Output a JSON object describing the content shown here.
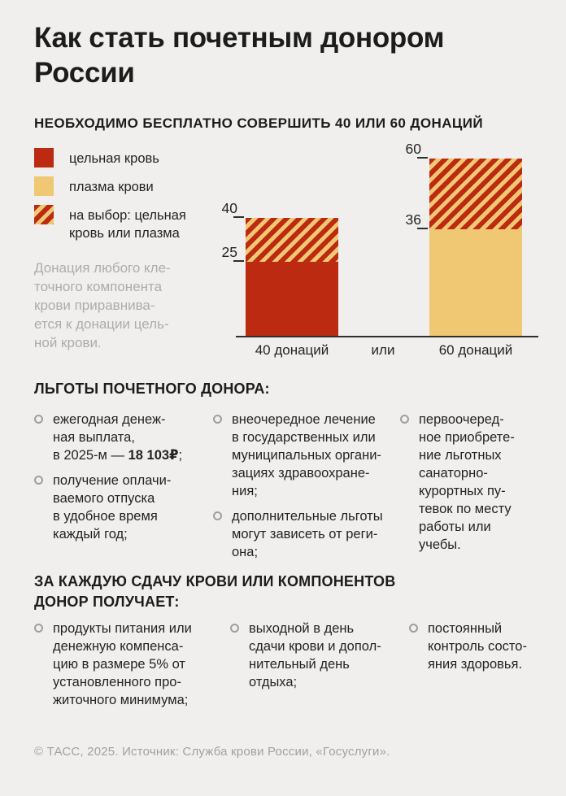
{
  "page_title": "Как стать почетным донором\nРоссии",
  "colors": {
    "red": "#bb2a11",
    "tan": "#f0c873",
    "background": "#f0efed",
    "text_dark": "#1c1c1c",
    "note_gray": "#aeaca9",
    "bullet_ring": "#9e9e9e",
    "footer_gray": "#a3a19e",
    "axis": "#2e2e2e"
  },
  "donations_section": {
    "legend": [
      {
        "swatch": "whole-blood",
        "label": "цельная кровь"
      },
      {
        "swatch": "plasma",
        "label": "плазма крови"
      },
      {
        "swatch": "either",
        "label": "на выбор: цельная\nкровь или плазма"
      }
    ],
    "note": "Донация любого кле-\nточного компонента\nкрови приравнива-\nется к донации цель-\nной крови."
  },
  "chart_data": {
    "type": "stacked-bar",
    "title": "НЕОБХОДИМО БЕСПЛАТНО СОВЕРШИТЬ 40 ИЛИ 60 ДОНАЦИЙ",
    "categories": [
      "40 донаций",
      "60 донаций"
    ],
    "separator_label": "или",
    "series": [
      {
        "name": "цельная кровь",
        "pattern": "solid-red",
        "values": [
          25,
          0
        ]
      },
      {
        "name": "плазма крови",
        "pattern": "solid-tan",
        "values": [
          0,
          36
        ]
      },
      {
        "name": "на выбор: цельная кровь или плазма",
        "pattern": "striped",
        "values": [
          15,
          24
        ]
      }
    ],
    "totals": [
      40,
      60
    ],
    "tick_labels": [
      [
        25,
        40
      ],
      [
        36,
        60
      ]
    ],
    "ylim": [
      0,
      60
    ],
    "grid": false,
    "legend_position": "left"
  },
  "benefits_section": {
    "heading": "ЛЬГОТЫ ПОЧЕТНОГО ДОНОРА:",
    "columns": [
      {
        "items": [
          {
            "text_before": "ежегодная денеж-\nная выплата,\nв 2025-м — ",
            "text_bold": "18 103₽",
            "text_after": ";"
          },
          {
            "text": "получение оплачи-\nваемого отпуска\nв удобное время\nкаждый год;"
          }
        ]
      },
      {
        "items": [
          {
            "text": "внеочередное лечение\nв государственных или\nмуниципальных органи-\nзациях здравоохране-\nния;"
          },
          {
            "text": "дополнительные льготы\nмогут зависеть от реги-\nона;"
          }
        ]
      },
      {
        "items": [
          {
            "text": "первоочеред-\nное приобрете-\nние льготных\nсанаторно-\nкурортных пу-\nтевок по месту\nработы или\nучебы."
          }
        ]
      }
    ]
  },
  "per_donation_section": {
    "heading": "ЗА КАЖДУЮ СДАЧУ КРОВИ ИЛИ КОМПОНЕНТОВ\nДОНОР ПОЛУЧАЕТ:",
    "columns": [
      {
        "items": [
          {
            "text": "продукты питания или\nденежную компенса-\nцию в размере 5% от\nустановленного про-\nжиточного минимума;"
          }
        ]
      },
      {
        "items": [
          {
            "text": "выходной в день\nсдачи крови и допол-\nнительный день\nотдыха;"
          }
        ]
      },
      {
        "items": [
          {
            "text": "постоянный\nконтроль состо-\nяния здоровья."
          }
        ]
      }
    ]
  },
  "footer": {
    "text": "© ТАСС, 2025. Источник: Служба крови России, «Госуслуги»."
  }
}
